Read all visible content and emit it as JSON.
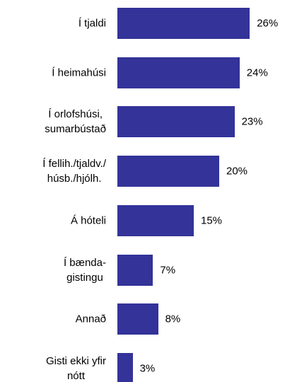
{
  "chart_data": {
    "type": "bar",
    "orientation": "horizontal",
    "categories": [
      "Í tjaldi",
      "Í heimahúsi",
      "Í orlofshúsi,\nsumarbústað",
      "Í fellih./tjaldv./\nhúsb./hjólh.",
      "Á hóteli",
      "Í bænda-\ngistingu",
      "Annað",
      "Gisti ekki yfir\nnótt"
    ],
    "values": [
      26,
      24,
      23,
      20,
      15,
      7,
      8,
      3
    ],
    "value_labels": [
      "26%",
      "24%",
      "23%",
      "20%",
      "15%",
      "7%",
      "8%",
      "3%"
    ],
    "color": "#333399"
  }
}
